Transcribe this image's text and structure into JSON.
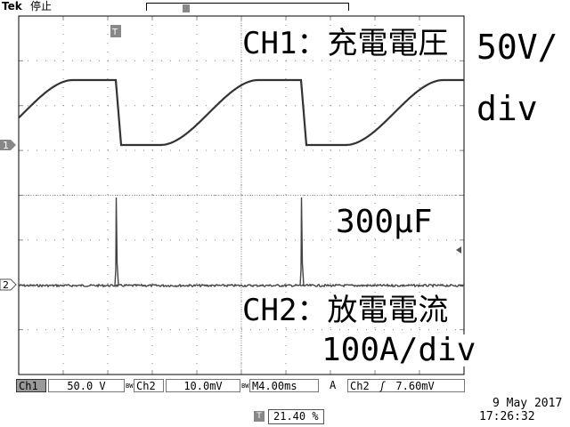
{
  "header": {
    "brand": "Tek",
    "run_state": "停止",
    "trigger_marker": "T"
  },
  "channels": [
    {
      "id": "1",
      "title": "CH1：充電電圧",
      "scale_line1": "50V/",
      "scale_line2": "div"
    },
    {
      "id": "2",
      "title": "CH2：放電電流",
      "scale": "100A/div"
    }
  ],
  "capacitor_label": "300μF",
  "status_bar": {
    "ch1_label": "Ch1",
    "ch1_scale": "50.0 V",
    "ch1_bw": "BW",
    "ch2_label": "Ch2",
    "ch2_scale": "10.0mV",
    "ch2_bw": "BW",
    "timebase": "M4.00ms",
    "acq_mode": "A",
    "trigger_source": "Ch2",
    "trigger_slope": "ʃ",
    "trigger_level": "7.60mV"
  },
  "footer": {
    "trigger_position": "21.40 %",
    "date": "9 May 2017",
    "time": "17:26:32"
  },
  "colors": {
    "trace": "#333333",
    "grid": "#888888",
    "background": "#ffffff"
  }
}
